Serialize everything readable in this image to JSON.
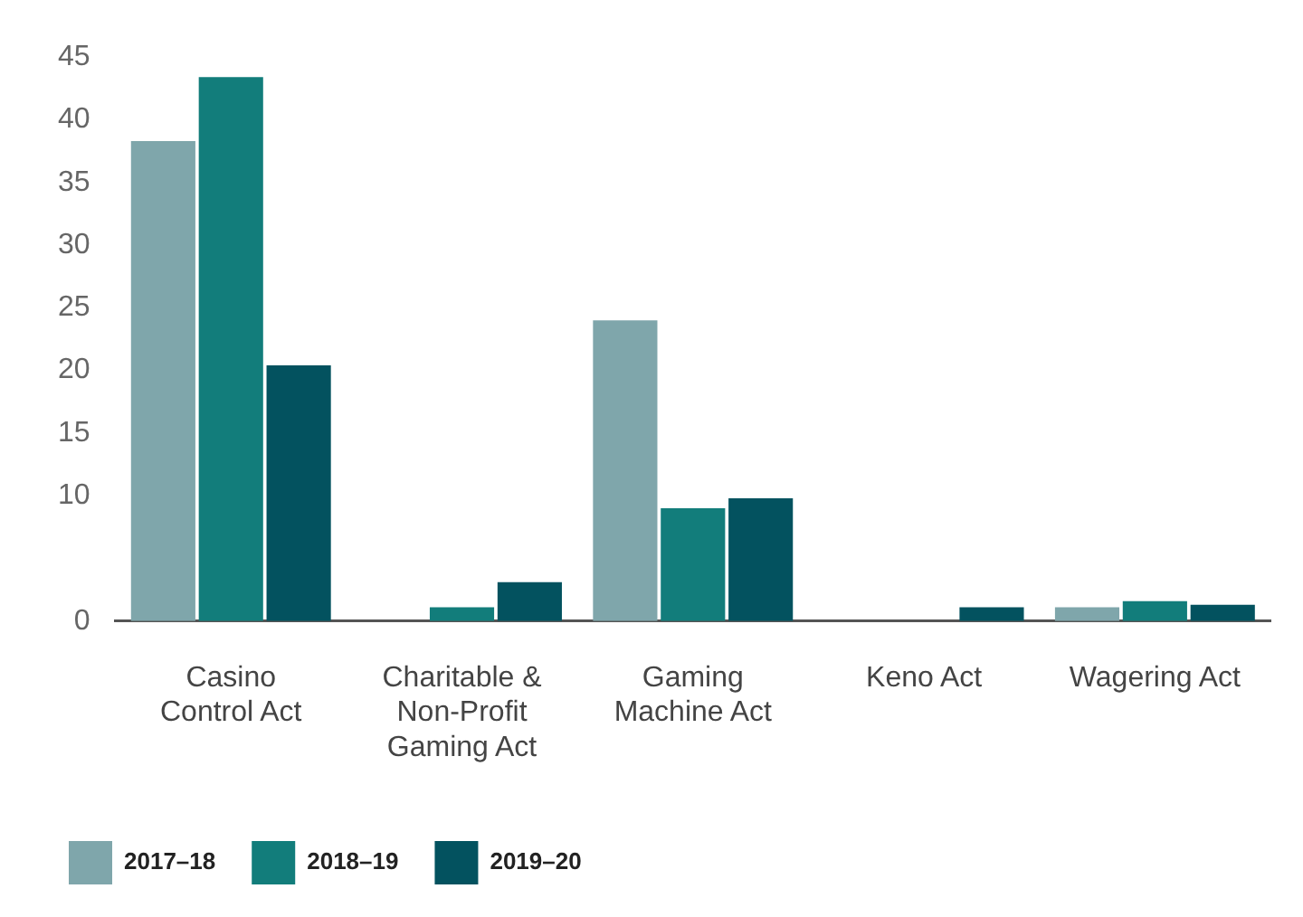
{
  "chart_data": {
    "type": "bar",
    "categories": [
      "Casino Control Act",
      "Charitable & Non-Profit Gaming Act",
      "Gaming Machine Act",
      "Keno Act",
      "Wagering Act"
    ],
    "series": [
      {
        "name": "2017–18",
        "color": "#7fa6ab",
        "values": [
          38.3,
          null,
          24.0,
          null,
          1.1
        ]
      },
      {
        "name": "2018–19",
        "color": "#127d7b",
        "values": [
          43.4,
          1.1,
          9.0,
          null,
          1.6
        ]
      },
      {
        "name": "2019–20",
        "color": "#03525f",
        "values": [
          20.4,
          3.1,
          9.8,
          1.1,
          1.3
        ]
      }
    ],
    "ylim": [
      0,
      45
    ],
    "yticks": [
      0,
      10,
      15,
      20,
      25,
      30,
      35,
      40,
      45
    ],
    "grid": false,
    "legend": "bottom left"
  }
}
